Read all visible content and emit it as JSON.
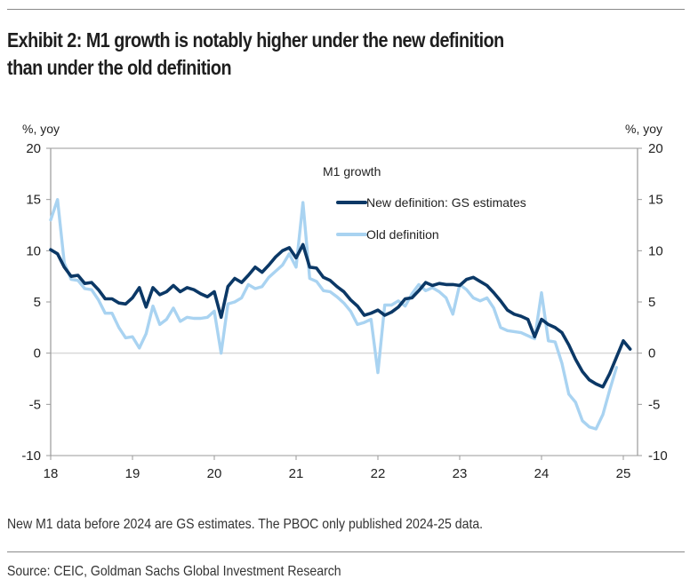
{
  "header": {
    "title_line1": "Exhibit 2: M1 growth is notably higher under the new definition",
    "title_line2": "than under the old definition"
  },
  "footer": {
    "note": "New M1 data before 2024 are GS estimates. The PBOC only published 2024-25 data.",
    "source": "Source: CEIC, Goldman Sachs Global Investment Research"
  },
  "colors": {
    "new": "#0b3866",
    "old": "#a9d3f1",
    "axis": "#9a9a9a",
    "zero": "#d9d9d9"
  },
  "chart_data": {
    "type": "line",
    "title": "M1 growth",
    "ylabel_left": "%, yoy",
    "ylabel_right": "%, yoy",
    "ylim": [
      -10,
      20
    ],
    "yticks": [
      -10,
      -5,
      0,
      5,
      10,
      15,
      20
    ],
    "xticks": [
      "18",
      "19",
      "20",
      "21",
      "22",
      "23",
      "24",
      "25"
    ],
    "x_start": "2018-01",
    "frequency": "monthly",
    "legend": {
      "title": "M1 growth",
      "placement": "top-center"
    },
    "grid": false,
    "series": [
      {
        "name": "New definition: GS estimates",
        "color_key": "new",
        "values": [
          10.1,
          9.7,
          8.4,
          7.5,
          7.6,
          6.8,
          6.9,
          6.2,
          5.3,
          5.3,
          4.9,
          4.8,
          5.4,
          6.4,
          4.5,
          6.4,
          5.7,
          6.0,
          6.6,
          6.0,
          6.4,
          6.2,
          5.8,
          5.5,
          6.0,
          3.5,
          6.5,
          7.3,
          6.9,
          7.6,
          8.4,
          7.9,
          8.6,
          9.4,
          10.0,
          10.3,
          9.3,
          10.6,
          8.4,
          8.3,
          7.4,
          7.1,
          6.5,
          6.0,
          5.2,
          4.6,
          3.7,
          3.9,
          4.2,
          3.7,
          4.0,
          4.5,
          5.3,
          5.4,
          6.1,
          6.9,
          6.6,
          6.8,
          6.7,
          6.7,
          6.6,
          7.2,
          7.4,
          7.0,
          6.6,
          5.9,
          5.1,
          4.2,
          3.8,
          3.6,
          3.3,
          1.6,
          3.3,
          2.8,
          2.5,
          2.0,
          0.8,
          -0.6,
          -1.8,
          -2.6,
          -3.0,
          -3.3,
          -2.0,
          -0.4,
          1.2,
          0.4
        ]
      },
      {
        "name": "Old definition",
        "color_key": "old",
        "values": [
          13.0,
          15.0,
          8.8,
          7.2,
          7.1,
          6.3,
          6.2,
          5.2,
          3.9,
          3.9,
          2.5,
          1.5,
          1.6,
          0.5,
          1.9,
          4.6,
          2.8,
          3.3,
          4.4,
          3.1,
          3.5,
          3.4,
          3.4,
          3.5,
          4.1,
          0.0,
          4.8,
          5.0,
          5.4,
          6.7,
          6.3,
          6.5,
          7.4,
          8.0,
          8.6,
          9.7,
          8.4,
          14.7,
          7.3,
          7.0,
          6.1,
          6.0,
          5.5,
          4.9,
          4.1,
          2.8,
          3.0,
          3.3,
          -1.9,
          4.7,
          4.7,
          5.1,
          4.6,
          5.8,
          6.7,
          6.1,
          6.4,
          6.0,
          5.4,
          3.8,
          6.7,
          6.2,
          5.4,
          5.1,
          5.4,
          4.4,
          2.5,
          2.2,
          2.1,
          2.0,
          1.7,
          1.4,
          5.9,
          1.2,
          1.1,
          -1.0,
          -4.0,
          -4.8,
          -6.6,
          -7.2,
          -7.4,
          -6.0,
          -3.6,
          -1.4
        ]
      }
    ]
  }
}
